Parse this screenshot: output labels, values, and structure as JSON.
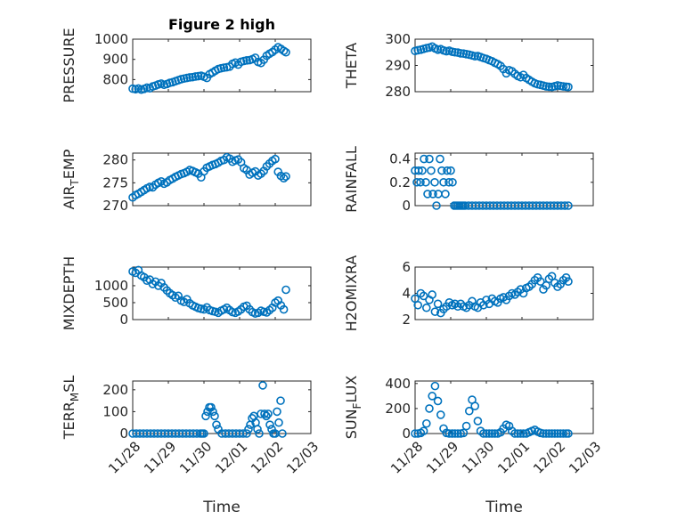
{
  "figure_title": "Figure 2 high",
  "marker_color": "#0072BD",
  "chart_data": [
    {
      "type": "scatter",
      "name": "pressure",
      "title": "Figure 2 high",
      "ylabel": "PRESSURE",
      "xlabel": "",
      "ylim": [
        740,
        1000
      ],
      "yticks": [
        800,
        900,
        1000
      ],
      "yticklabels": [
        "800",
        "900",
        "1000"
      ],
      "xlim": [
        0,
        5
      ],
      "xticklabels": [],
      "x": [
        0.0,
        0.08,
        0.16,
        0.24,
        0.32,
        0.4,
        0.48,
        0.56,
        0.64,
        0.72,
        0.8,
        0.88,
        0.96,
        1.04,
        1.12,
        1.2,
        1.28,
        1.36,
        1.44,
        1.52,
        1.6,
        1.68,
        1.76,
        1.84,
        1.92,
        2.0,
        2.08,
        2.16,
        2.24,
        2.32,
        2.4,
        2.48,
        2.56,
        2.64,
        2.72,
        2.8,
        2.88,
        2.96,
        3.04,
        3.12,
        3.2,
        3.28,
        3.36,
        3.44,
        3.52,
        3.6,
        3.68,
        3.76,
        3.84,
        3.92,
        4.0,
        4.08,
        4.16,
        4.24,
        4.3
      ],
      "y": [
        755,
        752,
        756,
        750,
        754,
        760,
        757,
        766,
        770,
        776,
        780,
        774,
        778,
        784,
        787,
        792,
        797,
        802,
        805,
        808,
        811,
        812,
        815,
        817,
        819,
        814,
        808,
        827,
        835,
        844,
        852,
        856,
        859,
        861,
        864,
        878,
        884,
        874,
        888,
        892,
        895,
        896,
        901,
        908,
        887,
        882,
        898,
        918,
        928,
        936,
        948,
        960,
        952,
        942,
        935
      ]
    },
    {
      "type": "scatter",
      "name": "theta",
      "title": "",
      "ylabel": "THETA",
      "xlabel": "",
      "ylim": [
        280,
        300
      ],
      "yticks": [
        280,
        290,
        300
      ],
      "yticklabels": [
        "280",
        "290",
        "300"
      ],
      "xlim": [
        0,
        5
      ],
      "xticklabels": [],
      "x": [
        0.0,
        0.08,
        0.16,
        0.24,
        0.32,
        0.4,
        0.48,
        0.56,
        0.64,
        0.72,
        0.8,
        0.88,
        0.96,
        1.04,
        1.12,
        1.2,
        1.28,
        1.36,
        1.44,
        1.52,
        1.6,
        1.68,
        1.76,
        1.84,
        1.92,
        2.0,
        2.08,
        2.16,
        2.24,
        2.32,
        2.4,
        2.48,
        2.56,
        2.64,
        2.72,
        2.8,
        2.88,
        2.96,
        3.04,
        3.12,
        3.2,
        3.28,
        3.36,
        3.44,
        3.52,
        3.6,
        3.68,
        3.76,
        3.84,
        3.92,
        4.0,
        4.08,
        4.16,
        4.24,
        4.3
      ],
      "y": [
        295.5,
        295.8,
        296.0,
        296.3,
        296.6,
        296.8,
        297.2,
        296.5,
        296.0,
        296.2,
        295.7,
        295.4,
        295.6,
        295.2,
        295.0,
        294.9,
        294.6,
        294.5,
        294.3,
        294.1,
        293.8,
        293.5,
        293.6,
        293.2,
        292.8,
        292.5,
        292.0,
        291.6,
        291.0,
        290.5,
        289.8,
        288.6,
        287.0,
        288.2,
        287.8,
        286.8,
        286.0,
        285.5,
        286.4,
        285.2,
        284.5,
        283.8,
        283.2,
        282.8,
        282.6,
        282.3,
        282.0,
        281.9,
        281.8,
        282.1,
        282.4,
        282.2,
        282.0,
        281.9,
        281.8
      ]
    },
    {
      "type": "scatter",
      "name": "air_temp",
      "title": "",
      "ylabel": "AIR_TEMP",
      "ylabel_main": "AIR",
      "ylabel_sub": "T",
      "ylabel_rest": "EMP",
      "xlabel": "",
      "ylim": [
        270,
        281.5
      ],
      "yticks": [
        270,
        275,
        280
      ],
      "yticklabels": [
        "270",
        "275",
        "280"
      ],
      "xlim": [
        0,
        5
      ],
      "xticklabels": [],
      "x": [
        0.0,
        0.08,
        0.16,
        0.24,
        0.32,
        0.4,
        0.48,
        0.56,
        0.64,
        0.72,
        0.8,
        0.88,
        0.96,
        1.04,
        1.12,
        1.2,
        1.28,
        1.36,
        1.44,
        1.52,
        1.6,
        1.68,
        1.76,
        1.84,
        1.92,
        2.0,
        2.08,
        2.16,
        2.24,
        2.32,
        2.4,
        2.48,
        2.56,
        2.64,
        2.72,
        2.8,
        2.88,
        2.96,
        3.04,
        3.12,
        3.2,
        3.28,
        3.36,
        3.44,
        3.52,
        3.6,
        3.68,
        3.76,
        3.84,
        3.92,
        4.0,
        4.08,
        4.16,
        4.24,
        4.3
      ],
      "y": [
        271.8,
        272.3,
        272.6,
        273.0,
        273.4,
        273.8,
        274.1,
        274.0,
        274.6,
        275.0,
        275.3,
        274.8,
        275.1,
        275.6,
        275.9,
        276.3,
        276.6,
        276.9,
        277.1,
        277.4,
        277.8,
        277.6,
        277.3,
        277.0,
        276.2,
        277.5,
        278.3,
        278.6,
        278.9,
        279.1,
        279.4,
        279.8,
        280.0,
        280.6,
        280.3,
        279.6,
        279.9,
        280.1,
        279.5,
        278.2,
        277.8,
        276.8,
        277.2,
        277.5,
        276.6,
        277.0,
        277.6,
        278.6,
        279.2,
        279.8,
        280.2,
        277.4,
        276.5,
        276.0,
        276.4
      ]
    },
    {
      "type": "scatter",
      "name": "rainfall",
      "title": "",
      "ylabel": "RAINFALL",
      "xlabel": "",
      "ylim": [
        0,
        0.45
      ],
      "yticks": [
        0,
        0.2,
        0.4
      ],
      "yticklabels": [
        "0",
        "0.2",
        "0.4"
      ],
      "xlim": [
        0,
        5
      ],
      "xticklabels": [],
      "x": [
        0.0,
        0.05,
        0.1,
        0.15,
        0.2,
        0.25,
        0.3,
        0.35,
        0.4,
        0.45,
        0.5,
        0.55,
        0.6,
        0.65,
        0.7,
        0.75,
        0.8,
        0.85,
        0.9,
        0.95,
        1.0,
        1.05,
        1.1,
        1.15,
        1.2,
        1.25,
        1.3,
        1.35,
        1.4,
        1.5,
        1.6,
        1.7,
        1.8,
        1.9,
        2.0,
        2.1,
        2.2,
        2.3,
        2.4,
        2.5,
        2.6,
        2.7,
        2.8,
        2.9,
        3.0,
        3.1,
        3.2,
        3.3,
        3.4,
        3.5,
        3.6,
        3.7,
        3.8,
        3.9,
        4.0,
        4.1,
        4.2,
        4.3
      ],
      "y": [
        0.3,
        0.2,
        0.3,
        0.2,
        0.3,
        0.4,
        0.2,
        0.1,
        0.4,
        0.3,
        0.1,
        0.2,
        0.0,
        0.1,
        0.4,
        0.3,
        0.2,
        0.1,
        0.3,
        0.2,
        0.3,
        0.2,
        0.0,
        0.0,
        0.0,
        0.0,
        0.0,
        0.0,
        0.0,
        0.0,
        0.0,
        0.0,
        0.0,
        0.0,
        0.0,
        0.0,
        0.0,
        0.0,
        0.0,
        0.0,
        0.0,
        0.0,
        0.0,
        0.0,
        0.0,
        0.0,
        0.0,
        0.0,
        0.0,
        0.0,
        0.0,
        0.0,
        0.0,
        0.0,
        0.0,
        0.0,
        0.0,
        0.0
      ]
    },
    {
      "type": "scatter",
      "name": "mixdepth",
      "title": "",
      "ylabel": "MIXDEPTH",
      "xlabel": "",
      "ylim": [
        0,
        1550
      ],
      "yticks": [
        0,
        500,
        1000
      ],
      "yticklabels": [
        "0",
        "500",
        "1000"
      ],
      "xlim": [
        0,
        5
      ],
      "xticklabels": [],
      "x": [
        0.0,
        0.08,
        0.16,
        0.24,
        0.32,
        0.4,
        0.48,
        0.56,
        0.64,
        0.72,
        0.8,
        0.88,
        0.96,
        1.04,
        1.12,
        1.2,
        1.28,
        1.36,
        1.44,
        1.52,
        1.6,
        1.68,
        1.76,
        1.84,
        1.92,
        2.0,
        2.08,
        2.16,
        2.24,
        2.32,
        2.4,
        2.48,
        2.56,
        2.64,
        2.72,
        2.8,
        2.88,
        2.96,
        3.04,
        3.12,
        3.2,
        3.28,
        3.36,
        3.44,
        3.52,
        3.6,
        3.68,
        3.76,
        3.84,
        3.92,
        4.0,
        4.08,
        4.16,
        4.24,
        4.3
      ],
      "y": [
        1420,
        1380,
        1460,
        1300,
        1250,
        1150,
        1180,
        1050,
        1120,
        1000,
        1080,
        950,
        860,
        780,
        720,
        650,
        700,
        560,
        520,
        600,
        480,
        420,
        380,
        340,
        320,
        300,
        360,
        280,
        250,
        230,
        200,
        260,
        300,
        350,
        280,
        220,
        200,
        240,
        300,
        380,
        410,
        300,
        220,
        180,
        200,
        260,
        230,
        210,
        280,
        350,
        500,
        560,
        420,
        300,
        880
      ]
    },
    {
      "type": "scatter",
      "name": "h2omixra",
      "title": "",
      "ylabel": "H2OMIXRA",
      "xlabel": "",
      "ylim": [
        2,
        6
      ],
      "yticks": [
        2,
        4,
        6
      ],
      "yticklabels": [
        "2",
        "4",
        "6"
      ],
      "xlim": [
        0,
        5
      ],
      "xticklabels": [],
      "x": [
        0.0,
        0.08,
        0.16,
        0.24,
        0.32,
        0.4,
        0.48,
        0.56,
        0.64,
        0.72,
        0.8,
        0.88,
        0.96,
        1.04,
        1.12,
        1.2,
        1.28,
        1.36,
        1.44,
        1.52,
        1.6,
        1.68,
        1.76,
        1.84,
        1.92,
        2.0,
        2.08,
        2.16,
        2.24,
        2.32,
        2.4,
        2.48,
        2.56,
        2.64,
        2.72,
        2.8,
        2.88,
        2.96,
        3.04,
        3.12,
        3.2,
        3.28,
        3.36,
        3.44,
        3.52,
        3.6,
        3.68,
        3.76,
        3.84,
        3.92,
        4.0,
        4.08,
        4.16,
        4.24,
        4.3
      ],
      "y": [
        3.6,
        3.1,
        4.0,
        3.8,
        2.9,
        3.5,
        3.9,
        2.6,
        3.2,
        2.5,
        2.8,
        3.0,
        3.3,
        3.1,
        3.2,
        3.0,
        3.2,
        3.0,
        2.9,
        3.1,
        3.4,
        3.0,
        2.9,
        3.3,
        3.1,
        3.5,
        3.2,
        3.6,
        3.4,
        3.3,
        3.6,
        3.7,
        3.5,
        3.8,
        4.0,
        3.9,
        4.1,
        4.3,
        4.0,
        4.4,
        4.5,
        4.7,
        5.0,
        5.2,
        4.9,
        4.3,
        4.6,
        5.1,
        5.3,
        4.8,
        4.5,
        4.7,
        5.0,
        5.2,
        4.9
      ]
    },
    {
      "type": "scatter",
      "name": "terr_msl",
      "title": "",
      "ylabel": "TERR_MSL",
      "ylabel_main": "TERR",
      "ylabel_sub": "M",
      "ylabel_rest": "SL",
      "xlabel": "Time",
      "ylim": [
        0,
        240
      ],
      "yticks": [
        0,
        100,
        200
      ],
      "yticklabels": [
        "0",
        "100",
        "200"
      ],
      "xlim": [
        0,
        5
      ],
      "xticklabels": [
        "11/28",
        "11/29",
        "11/30",
        "12/01",
        "12/02",
        "12/03"
      ],
      "x": [
        0.0,
        0.1,
        0.2,
        0.3,
        0.4,
        0.5,
        0.6,
        0.7,
        0.8,
        0.9,
        1.0,
        1.1,
        1.2,
        1.3,
        1.4,
        1.5,
        1.6,
        1.7,
        1.8,
        1.9,
        1.95,
        2.0,
        2.05,
        2.1,
        2.15,
        2.2,
        2.25,
        2.3,
        2.35,
        2.4,
        2.5,
        2.6,
        2.7,
        2.8,
        2.9,
        3.0,
        3.1,
        3.2,
        3.25,
        3.3,
        3.35,
        3.4,
        3.45,
        3.5,
        3.55,
        3.6,
        3.65,
        3.7,
        3.75,
        3.8,
        3.85,
        3.9,
        3.95,
        4.0,
        4.05,
        4.1,
        4.15,
        4.2
      ],
      "y": [
        0,
        0,
        0,
        0,
        0,
        0,
        0,
        0,
        0,
        0,
        0,
        0,
        0,
        0,
        0,
        0,
        0,
        0,
        0,
        0,
        0,
        0,
        80,
        100,
        120,
        120,
        100,
        80,
        40,
        20,
        0,
        0,
        0,
        0,
        0,
        0,
        0,
        0,
        20,
        40,
        70,
        80,
        50,
        20,
        0,
        90,
        220,
        90,
        80,
        90,
        40,
        20,
        0,
        0,
        100,
        50,
        150,
        0
      ]
    },
    {
      "type": "scatter",
      "name": "sun_flux",
      "title": "",
      "ylabel": "SUN_FLUX",
      "ylabel_main": "SUN",
      "ylabel_sub": "F",
      "ylabel_rest": "LUX",
      "xlabel": "Time",
      "ylim": [
        0,
        420
      ],
      "yticks": [
        0,
        200,
        400
      ],
      "yticklabels": [
        "0",
        "200",
        "400"
      ],
      "xlim": [
        0,
        5
      ],
      "xticklabels": [
        "11/28",
        "11/29",
        "11/30",
        "12/01",
        "12/02",
        "12/03"
      ],
      "x": [
        0.0,
        0.08,
        0.16,
        0.24,
        0.32,
        0.4,
        0.48,
        0.56,
        0.64,
        0.72,
        0.8,
        0.88,
        0.96,
        1.04,
        1.12,
        1.2,
        1.28,
        1.36,
        1.44,
        1.52,
        1.6,
        1.68,
        1.76,
        1.84,
        1.92,
        2.0,
        2.08,
        2.16,
        2.24,
        2.32,
        2.4,
        2.48,
        2.56,
        2.64,
        2.72,
        2.8,
        2.88,
        2.96,
        3.04,
        3.12,
        3.2,
        3.28,
        3.36,
        3.44,
        3.52,
        3.6,
        3.68,
        3.76,
        3.84,
        3.92,
        4.0,
        4.08,
        4.16,
        4.24,
        4.3
      ],
      "y": [
        0,
        0,
        5,
        20,
        80,
        200,
        300,
        380,
        260,
        150,
        40,
        5,
        0,
        0,
        0,
        0,
        0,
        5,
        60,
        180,
        270,
        220,
        100,
        20,
        0,
        0,
        0,
        0,
        0,
        0,
        10,
        40,
        70,
        60,
        20,
        0,
        0,
        0,
        0,
        0,
        10,
        20,
        30,
        15,
        5,
        0,
        0,
        0,
        0,
        0,
        0,
        0,
        0,
        0,
        0
      ]
    }
  ]
}
